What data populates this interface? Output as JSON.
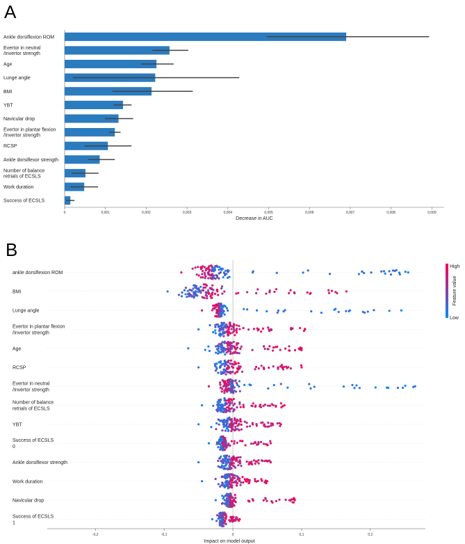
{
  "chart_data": [
    {
      "type": "bar",
      "panel": "A",
      "orientation": "horizontal",
      "xlabel": "Decrease in AUC",
      "xlim": [
        0,
        0.0093
      ],
      "xticks": [
        0,
        0.001,
        0.002,
        0.003,
        0.004,
        0.005,
        0.006,
        0.007,
        0.008,
        0.009
      ],
      "xtick_labels": [
        "0",
        "0,001",
        "0,002",
        "0,003",
        "0,004",
        "0,005",
        "0,006",
        "0,007",
        "0,008",
        "0,009"
      ],
      "bar_color": "#2b7bbf",
      "error_color": "#444444",
      "categories": [
        [
          "Ankle dorsiflexion ROM"
        ],
        [
          "Evertor in neutral",
          "/Invertor strength"
        ],
        [
          "Age"
        ],
        [
          "Lunge angle"
        ],
        [
          "BMI"
        ],
        [
          "YBT"
        ],
        [
          "Navicular drop"
        ],
        [
          "Evertor in plantar flexion",
          "/Invertor strength"
        ],
        [
          "RCSP"
        ],
        [
          "Ankle dorsiflexor strength"
        ],
        [
          "Number of balance",
          "retrials of ECSLS"
        ],
        [
          "Work duration"
        ],
        [
          "Success of ECSLS"
        ]
      ],
      "values": [
        0.0069,
        0.00257,
        0.00225,
        0.00222,
        0.00213,
        0.00143,
        0.00132,
        0.00123,
        0.00106,
        0.00086,
        0.00051,
        0.00048,
        0.00014
      ],
      "error_low": [
        0.00495,
        0.00215,
        0.00188,
        0.0002,
        0.00117,
        0.00121,
        0.00099,
        0.00109,
        0.00049,
        0.00057,
        0.00017,
        0.00014,
        4e-05
      ],
      "error_high": [
        0.00893,
        0.00303,
        0.00267,
        0.00428,
        0.00314,
        0.00164,
        0.00168,
        0.00137,
        0.00164,
        0.00123,
        0.00083,
        0.00082,
        0.00024
      ]
    },
    {
      "type": "scatter",
      "subtype": "beeswarm",
      "panel": "B",
      "xlabel": "Impact on model output",
      "xlim": [
        -0.27,
        0.28
      ],
      "xticks": [
        -0.2,
        -0.1,
        0,
        0.1,
        0.2
      ],
      "xtick_labels": [
        "-0,2",
        "-0,1",
        "0",
        "0,1",
        "0,2"
      ],
      "colorbar": {
        "label": "Feature value",
        "high": "High",
        "low": "Low",
        "high_color": "#ff0052",
        "mid_color": "#8a3fa5",
        "low_color": "#008bfb"
      },
      "features": [
        {
          "label": [
            "ankle dorsiflexion ROM"
          ],
          "center": -0.03,
          "spread": 0.035,
          "min": -0.075,
          "max": 0.255,
          "tail_low": true
        },
        {
          "label": [
            "BMI"
          ],
          "center": -0.045,
          "spread": 0.04,
          "min": -0.095,
          "max": 0.165,
          "tail_low": false
        },
        {
          "label": [
            "Lunge angle"
          ],
          "center": -0.02,
          "spread": 0.012,
          "min": -0.045,
          "max": 0.245,
          "tail_low": true
        },
        {
          "label": [
            "Evertor in plantar flexion",
            "/Invertor strength"
          ],
          "center": -0.01,
          "spread": 0.025,
          "min": -0.05,
          "max": 0.105,
          "tail_low": false
        },
        {
          "label": [
            "Age"
          ],
          "center": -0.01,
          "spread": 0.03,
          "min": -0.065,
          "max": 0.1,
          "tail_low": false
        },
        {
          "label": [
            "RCSP"
          ],
          "center": -0.01,
          "spread": 0.03,
          "min": -0.05,
          "max": 0.1,
          "tail_low": false
        },
        {
          "label": [
            "Evertor in neutral",
            "/Invertor strength"
          ],
          "center": -0.005,
          "spread": 0.02,
          "min": -0.035,
          "max": 0.265,
          "tail_low": true
        },
        {
          "label": [
            "Number of balance",
            "retrials of ECSLS"
          ],
          "center": -0.01,
          "spread": 0.025,
          "min": -0.045,
          "max": 0.075,
          "tail_low": false
        },
        {
          "label": [
            "YBT"
          ],
          "center": -0.005,
          "spread": 0.025,
          "min": -0.05,
          "max": 0.07,
          "tail_low": false
        },
        {
          "label": [
            "Success of ECSLS",
            "0"
          ],
          "center": -0.015,
          "spread": 0.01,
          "min": -0.035,
          "max": 0.055,
          "tail_low": false
        },
        {
          "label": [
            "Ankle dorsiflexor strength"
          ],
          "center": -0.005,
          "spread": 0.025,
          "min": -0.05,
          "max": 0.055,
          "tail_low": false
        },
        {
          "label": [
            "Work duration"
          ],
          "center": -0.005,
          "spread": 0.02,
          "min": -0.045,
          "max": 0.05,
          "tail_low": false
        },
        {
          "label": [
            "Navicular drop"
          ],
          "center": -0.005,
          "spread": 0.012,
          "min": -0.025,
          "max": 0.09,
          "tail_low": false
        },
        {
          "label": [
            "Success of ECSLS",
            "1"
          ],
          "center": -0.015,
          "spread": 0.008,
          "min": -0.03,
          "max": 0.01,
          "tail_low": false
        }
      ]
    }
  ],
  "panels": {
    "a": "A",
    "b": "B"
  }
}
